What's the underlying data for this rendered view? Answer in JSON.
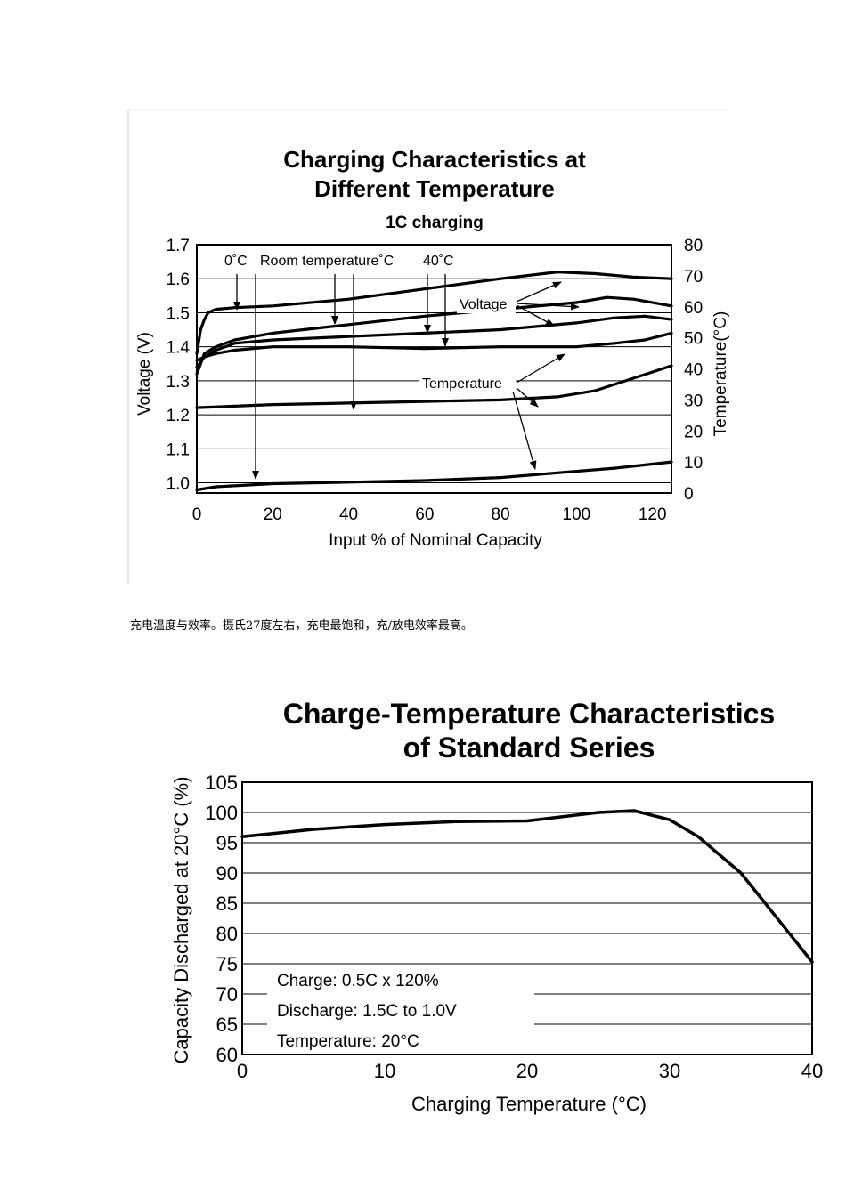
{
  "caption": "充电温度与效率。摄氏27度左右，充电最饱和，充/放电效率最高。",
  "chart_data": [
    {
      "type": "line",
      "title": "Charging Characteristics at",
      "title_line2": "Different Temperature",
      "subtitle": "1C charging",
      "xlabel": "Input % of Nominal Capacity",
      "ylabel": "Voltage (V)",
      "y2label": "Temperature(°C)",
      "xlim": [
        0,
        125
      ],
      "ylim": [
        0.97,
        1.7
      ],
      "y2lim": [
        0,
        80
      ],
      "x_ticks": [
        "0",
        "20",
        "40",
        "60",
        "80",
        "100",
        "120"
      ],
      "y_ticks": [
        "1.7",
        "1.6",
        "1.5",
        "1.4",
        "1.3",
        "1.2",
        "1.1",
        "1.0"
      ],
      "y2_ticks": [
        "80",
        "70",
        "60",
        "50",
        "40",
        "30",
        "20",
        "10",
        "0"
      ],
      "annotations": {
        "zero": "0˚C",
        "room": "Room temperature˚C",
        "forty": "40˚C",
        "voltage": "Voltage",
        "temperature": "Temperature"
      },
      "series": [
        {
          "name": "Voltage 0°C",
          "axis": "y",
          "x": [
            0,
            1,
            2,
            3,
            5,
            10,
            20,
            40,
            60,
            80,
            95,
            105,
            115,
            125
          ],
          "values": [
            1.38,
            1.45,
            1.48,
            1.5,
            1.51,
            1.515,
            1.52,
            1.54,
            1.57,
            1.6,
            1.62,
            1.615,
            1.605,
            1.6
          ]
        },
        {
          "name": "Voltage Room temperature",
          "axis": "y",
          "x": [
            0,
            2,
            5,
            10,
            20,
            40,
            60,
            80,
            100,
            108,
            115,
            125
          ],
          "values": [
            1.32,
            1.38,
            1.4,
            1.42,
            1.44,
            1.465,
            1.49,
            1.51,
            1.53,
            1.545,
            1.54,
            1.52
          ]
        },
        {
          "name": "Voltage 40°C",
          "axis": "y",
          "x": [
            0,
            2,
            5,
            10,
            20,
            40,
            60,
            80,
            100,
            110,
            118,
            125
          ],
          "values": [
            1.34,
            1.37,
            1.39,
            1.41,
            1.42,
            1.43,
            1.44,
            1.45,
            1.47,
            1.485,
            1.49,
            1.48
          ]
        },
        {
          "name": "Voltage 40°C (lower)",
          "axis": "y",
          "x": [
            0,
            2,
            5,
            10,
            20,
            40,
            60,
            80,
            100,
            110,
            118,
            125
          ],
          "values": [
            1.36,
            1.37,
            1.38,
            1.39,
            1.4,
            1.4,
            1.395,
            1.4,
            1.4,
            1.41,
            1.42,
            1.44
          ]
        },
        {
          "name": "Temperature Room",
          "axis": "y2",
          "x": [
            0,
            10,
            20,
            40,
            60,
            80,
            95,
            105,
            115,
            125
          ],
          "values": [
            27.5,
            28,
            28.5,
            29,
            29.5,
            30,
            31,
            33,
            37,
            41
          ]
        },
        {
          "name": "Temperature 0°C",
          "axis": "y2",
          "x": [
            0,
            5,
            20,
            40,
            60,
            80,
            95,
            110,
            125
          ],
          "values": [
            1,
            2,
            3,
            3.5,
            4,
            5,
            6.5,
            8,
            10
          ]
        }
      ]
    },
    {
      "type": "line",
      "title": "Charge-Temperature Characteristics",
      "title_line2": "of Standard Series",
      "xlabel": "Charging Temperature (°C)",
      "ylabel": "Capacity Discharged at 20°C (%)",
      "xlim": [
        0,
        40
      ],
      "ylim": [
        60,
        105
      ],
      "x_ticks": [
        "0",
        "10",
        "20",
        "30",
        "40"
      ],
      "y_ticks": [
        "105",
        "100",
        "95",
        "90",
        "85",
        "80",
        "75",
        "70",
        "65",
        "60"
      ],
      "legend_text": [
        "Charge: 0.5C x 120%",
        "Discharge: 1.5C to 1.0V",
        "Temperature: 20°C"
      ],
      "series": [
        {
          "name": "Capacity",
          "x": [
            0,
            5,
            10,
            15,
            20,
            25,
            27.5,
            30,
            32,
            35,
            40
          ],
          "values": [
            96,
            97.2,
            98,
            98.5,
            98.6,
            100,
            100.3,
            98.8,
            96,
            90,
            75.3
          ]
        }
      ]
    }
  ]
}
